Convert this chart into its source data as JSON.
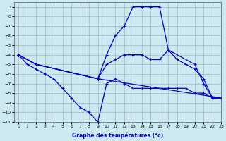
{
  "title": "",
  "xlabel": "Graphe des températures (°c)",
  "ylabel": "",
  "bg_color": "#cce8f0",
  "grid_color": "#99aabb",
  "line_color": "#0000cc",
  "xlim": [
    -0.5,
    23
  ],
  "ylim": [
    -11,
    1.5
  ],
  "yticks": [
    1,
    0,
    -1,
    -2,
    -3,
    -4,
    -5,
    -6,
    -7,
    -8,
    -9,
    -10,
    -11
  ],
  "xticks": [
    0,
    1,
    2,
    3,
    4,
    5,
    6,
    7,
    8,
    9,
    10,
    11,
    12,
    13,
    14,
    15,
    16,
    17,
    18,
    19,
    20,
    21,
    22,
    23
  ],
  "series": [
    {
      "x": [
        0,
        2,
        9,
        10,
        11,
        12,
        13,
        14,
        15,
        16,
        17,
        20,
        21,
        22,
        23
      ],
      "y": [
        -4,
        -5,
        -6.5,
        -4,
        -2,
        -1,
        1,
        1,
        1,
        1,
        -3.5,
        -5,
        -7,
        -8.5,
        -8.5
      ]
    },
    {
      "x": [
        0,
        2,
        9,
        23
      ],
      "y": [
        -4,
        -5,
        -6.5,
        -8.5
      ]
    },
    {
      "x": [
        0,
        2,
        9,
        10,
        11,
        12,
        13,
        14,
        15,
        16,
        17,
        18,
        19,
        20,
        21,
        22,
        23
      ],
      "y": [
        -4,
        -5,
        -6.5,
        -5,
        -4.5,
        -4,
        -4,
        -4,
        -4.5,
        -4.5,
        -3.5,
        -4.5,
        -5,
        -5.5,
        -6.5,
        -8.5,
        -8.5
      ]
    },
    {
      "x": [
        0,
        1,
        2,
        3,
        4,
        5,
        6,
        7,
        8,
        9,
        10,
        11,
        12,
        13,
        14,
        15,
        16,
        17,
        18,
        19,
        20,
        21,
        22,
        23
      ],
      "y": [
        -4,
        -5,
        -5.5,
        -6,
        -6.5,
        -7.5,
        -8.5,
        -9.5,
        -10,
        -11,
        -7,
        -6.5,
        -7,
        -7.5,
        -7.5,
        -7.5,
        -7.5,
        -7.5,
        -7.5,
        -7.5,
        -8,
        -8,
        -8.5,
        -8.5
      ]
    }
  ]
}
